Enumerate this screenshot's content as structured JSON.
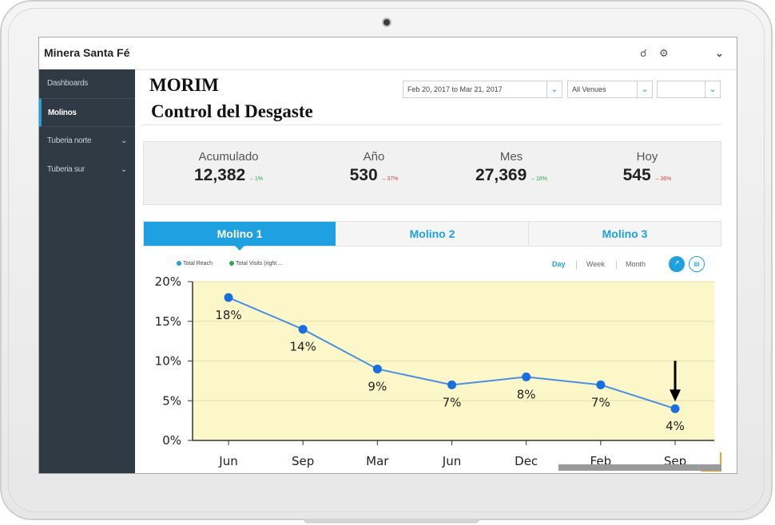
{
  "app": {
    "brand": "Minera Santa Fé"
  },
  "sidebar": {
    "items": [
      {
        "label": "Dashboards",
        "active": false,
        "chevron": false
      },
      {
        "label": "Molinos",
        "active": true,
        "chevron": false
      },
      {
        "label": "Tuberia norte",
        "active": false,
        "chevron": true
      },
      {
        "label": "Tuberia sur",
        "active": false,
        "chevron": true
      }
    ]
  },
  "header": {
    "title": "MORIM",
    "subtitle": "Control del Desgaste",
    "date_range": "Feb 20, 2017 to Mar 21, 2017",
    "venue": "All Venues",
    "third_filter": ""
  },
  "stats": [
    {
      "label": "Acumulado",
      "value": "12,382",
      "delta": "1%",
      "trend": "up"
    },
    {
      "label": "Año",
      "value": "530",
      "delta": "37%",
      "trend": "down"
    },
    {
      "label": "Mes",
      "value": "27,369",
      "delta": "16%",
      "trend": "up"
    },
    {
      "label": "Hoy",
      "value": "545",
      "delta": "36%",
      "trend": "down"
    }
  ],
  "tabs": [
    {
      "label": "Molino 1",
      "active": true
    },
    {
      "label": "Molino 2",
      "active": false
    },
    {
      "label": "Molino 3",
      "active": false
    }
  ],
  "legend": [
    {
      "label": "Total Reach",
      "color": "#1fa0e0"
    },
    {
      "label": "Total Visits (right ...",
      "color": "#2aa84a"
    }
  ],
  "periods": [
    {
      "label": "Day",
      "active": true
    },
    {
      "label": "Week",
      "active": false
    },
    {
      "label": "Month",
      "active": false
    }
  ],
  "colors": {
    "accent": "#1fa0e0",
    "plot_bg": "#fbf7c8",
    "line": "#4a90e2",
    "marker": "#1a6fe0"
  },
  "chart_data": {
    "type": "line",
    "categories": [
      "Jun",
      "Sep",
      "Mar",
      "Jun",
      "Dec",
      "Feb",
      "Sep"
    ],
    "values": [
      18,
      14,
      9,
      7,
      8,
      7,
      4
    ],
    "data_labels": [
      "18%",
      "14%",
      "9%",
      "7%",
      "8%",
      "7%",
      "4%"
    ],
    "y_ticks": [
      "0%",
      "5%",
      "10%",
      "15%",
      "20%"
    ],
    "ylim": [
      0,
      20
    ],
    "grid": "horizontal",
    "annotation": "arrow pointing down to the last point"
  }
}
